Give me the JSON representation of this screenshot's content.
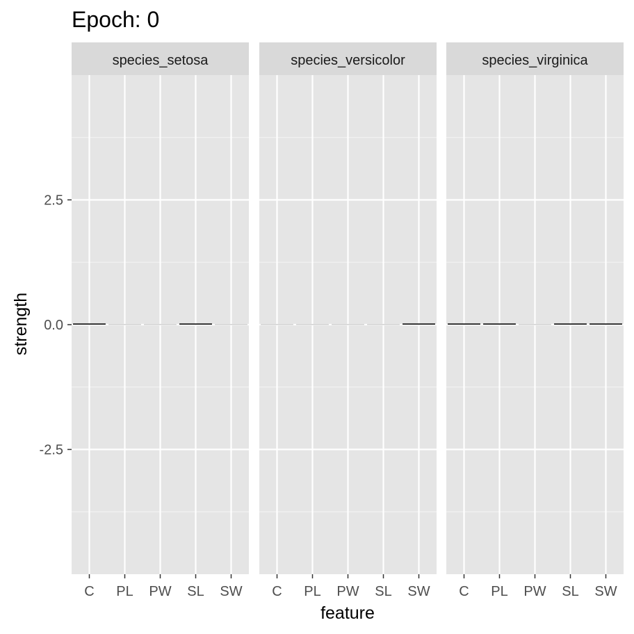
{
  "chart_data": {
    "type": "bar",
    "title": "Epoch: 0",
    "xlabel": "feature",
    "ylabel": "strength",
    "ylim": [
      -5,
      5
    ],
    "y_ticks": [
      -2.5,
      0.0,
      2.5
    ],
    "y_tick_labels": [
      "-2.5",
      "0.0",
      "2.5"
    ],
    "categories": [
      "C",
      "PL",
      "PW",
      "SL",
      "SW"
    ],
    "grid": true,
    "facets": [
      {
        "name": "species_setosa",
        "values": [
          0.01,
          0.0,
          0.0,
          0.01,
          0.0
        ]
      },
      {
        "name": "species_versicolor",
        "values": [
          0.0,
          0.0,
          0.0,
          0.0,
          0.01
        ]
      },
      {
        "name": "species_virginica",
        "values": [
          0.01,
          0.01,
          0.0,
          0.01,
          0.01
        ]
      }
    ],
    "colors": {
      "page_background": "#ffffff",
      "panel_background": "#e5e5e5",
      "strip_background": "#d9d9d9",
      "grid_major": "#ffffff",
      "grid_minor": "#f2f2f2",
      "bar_outline": "#1a1a1a",
      "tick_color": "#333333"
    }
  }
}
